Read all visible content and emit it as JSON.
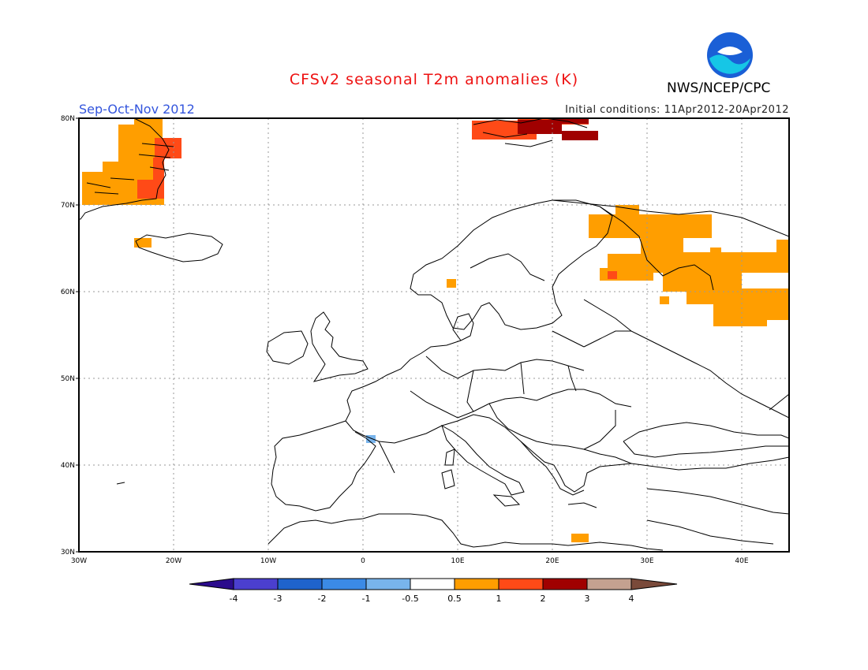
{
  "title": "CFSv2 seasonal T2m anomalies (K)",
  "agency": "NWS/NCEP/CPC",
  "logo_text": "NOAA",
  "season": "Sep-Oct-Nov 2012",
  "initial_conditions": "Initial conditions: 11Apr2012-20Apr2012",
  "map": {
    "lon_range": [
      -30,
      45
    ],
    "lat_range": [
      30,
      80
    ],
    "lat_ticks": [
      "30N",
      "40N",
      "50N",
      "60N",
      "70N",
      "80N"
    ],
    "lon_ticks": [
      "30W",
      "20W",
      "10W",
      "0",
      "10E",
      "20E",
      "30E",
      "40E"
    ],
    "grid": true
  },
  "anomaly_regions": [
    {
      "name": "greenland-east",
      "category": "0.5 to 1"
    },
    {
      "name": "greenland-east-core",
      "category": "1 to 2"
    },
    {
      "name": "svalbard",
      "category": "1 to 2"
    },
    {
      "name": "svalbard-core",
      "category": "2 to 3"
    },
    {
      "name": "iceland",
      "category": "0.5 to 1"
    },
    {
      "name": "fennoscandia-russia",
      "category": "0.5 to 1"
    },
    {
      "name": "finland-core",
      "category": "1 to 2"
    },
    {
      "name": "pyrenees",
      "category": "-1 to -0.5"
    },
    {
      "name": "crete",
      "category": "0.5 to 1"
    }
  ],
  "colorbar": {
    "labels": [
      "-4",
      "-3",
      "-2",
      "-1",
      "-0.5",
      "0.5",
      "1",
      "2",
      "3",
      "4"
    ],
    "colors": [
      "#2b0b8c",
      "#4b3fcf",
      "#1f63cc",
      "#3b8ae6",
      "#78b4ec",
      "#ffffff",
      "#ff9e00",
      "#ff4a17",
      "#a00000",
      "#c4a190",
      "#7a4a3a"
    ]
  }
}
